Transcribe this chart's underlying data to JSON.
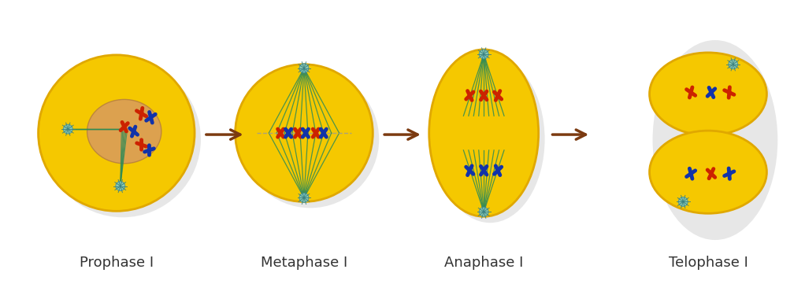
{
  "background_color": "#ffffff",
  "cell_color": "#F5C800",
  "cell_edge_color": "#E0A800",
  "nucleus_color": "#D4956A",
  "spindle_color": "#2E8B57",
  "arrow_color": "#7B3A10",
  "chr_red": "#CC2200",
  "chr_blue": "#1133AA",
  "centriole_color": "#7EC8C8",
  "labels": [
    "Prophase I",
    "Metaphase I",
    "Anaphase I",
    "Telophase I"
  ],
  "label_fontsize": 13,
  "label_color": "#333333",
  "figsize": [
    10.22,
    3.61
  ],
  "dpi": 100
}
